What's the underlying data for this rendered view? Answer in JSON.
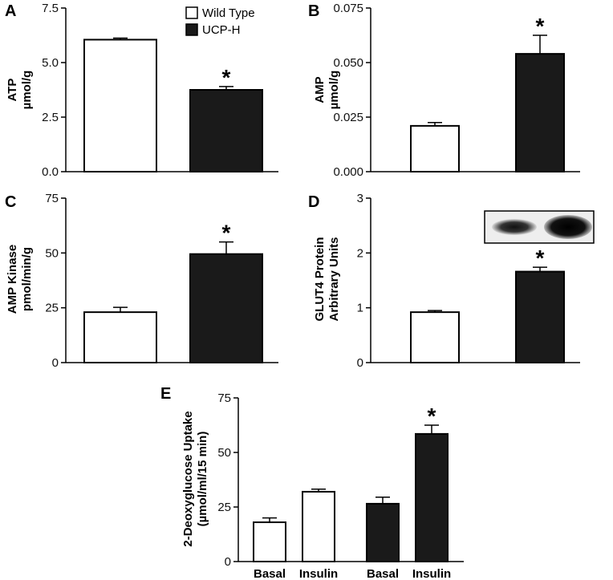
{
  "legend": {
    "entries": [
      {
        "label": "Wild Type",
        "fill": "#ffffff"
      },
      {
        "label": "UCP-H",
        "fill": "#1a1a1a"
      }
    ]
  },
  "colors": {
    "wild_type": "#ffffff",
    "ucp_h": "#1a1a1a",
    "stroke": "#000000"
  },
  "chart_data": [
    {
      "panel": "A",
      "type": "bar",
      "ylabel": "ATP",
      "ylabel2": "µmol/g",
      "ylim": [
        0,
        7.5
      ],
      "yticks": [
        "0.0",
        "2.5",
        "5.0",
        "7.5"
      ],
      "ytick_values": [
        0,
        2.5,
        5,
        7.5
      ],
      "categories": [
        "Wild Type",
        "UCP-H"
      ],
      "values": [
        6.05,
        3.75
      ],
      "errors": [
        0.07,
        0.15
      ],
      "significant": [
        false,
        true
      ]
    },
    {
      "panel": "B",
      "type": "bar",
      "ylabel": "AMP",
      "ylabel2": "µmol/g",
      "ylim": [
        0,
        0.075
      ],
      "yticks": [
        "0.000",
        "0.025",
        "0.050",
        "0.075"
      ],
      "ytick_values": [
        0,
        0.025,
        0.05,
        0.075
      ],
      "categories": [
        "Wild Type",
        "UCP-H"
      ],
      "values": [
        0.021,
        0.054
      ],
      "errors": [
        0.0015,
        0.0085
      ],
      "significant": [
        false,
        true
      ]
    },
    {
      "panel": "C",
      "type": "bar",
      "ylabel": "AMP Kinase",
      "ylabel2": "pmol/min/g",
      "ylim": [
        0,
        75
      ],
      "yticks": [
        "0",
        "25",
        "50",
        "75"
      ],
      "ytick_values": [
        0,
        25,
        50,
        75
      ],
      "categories": [
        "Wild Type",
        "UCP-H"
      ],
      "values": [
        23,
        49.5
      ],
      "errors": [
        2.2,
        5.5
      ],
      "significant": [
        false,
        true
      ]
    },
    {
      "panel": "D",
      "type": "bar",
      "ylabel": "GLUT4 Protein",
      "ylabel2": "Arbitrary Units",
      "ylim": [
        0,
        3
      ],
      "yticks": [
        "0",
        "1",
        "2",
        "3"
      ],
      "ytick_values": [
        0,
        1,
        2,
        3
      ],
      "categories": [
        "Wild Type",
        "UCP-H"
      ],
      "values": [
        0.92,
        1.66
      ],
      "errors": [
        0.03,
        0.08
      ],
      "significant": [
        false,
        true
      ],
      "inset": "western-blot"
    },
    {
      "panel": "E",
      "type": "bar",
      "ylabel": "2-Deoxyglucose Uptake",
      "ylabel2": "(µmol/ml/15 min)",
      "ylim": [
        0,
        75
      ],
      "yticks": [
        "0",
        "25",
        "50",
        "75"
      ],
      "ytick_values": [
        0,
        25,
        50,
        75
      ],
      "categories": [
        "Basal",
        "Insulin",
        "Basal",
        "Insulin"
      ],
      "groups": [
        "Wild Type",
        "Wild Type",
        "UCP-H",
        "UCP-H"
      ],
      "values": [
        18,
        32,
        26.5,
        58.5
      ],
      "errors": [
        2,
        1.2,
        3,
        4
      ],
      "significant": [
        false,
        false,
        false,
        true
      ]
    }
  ]
}
